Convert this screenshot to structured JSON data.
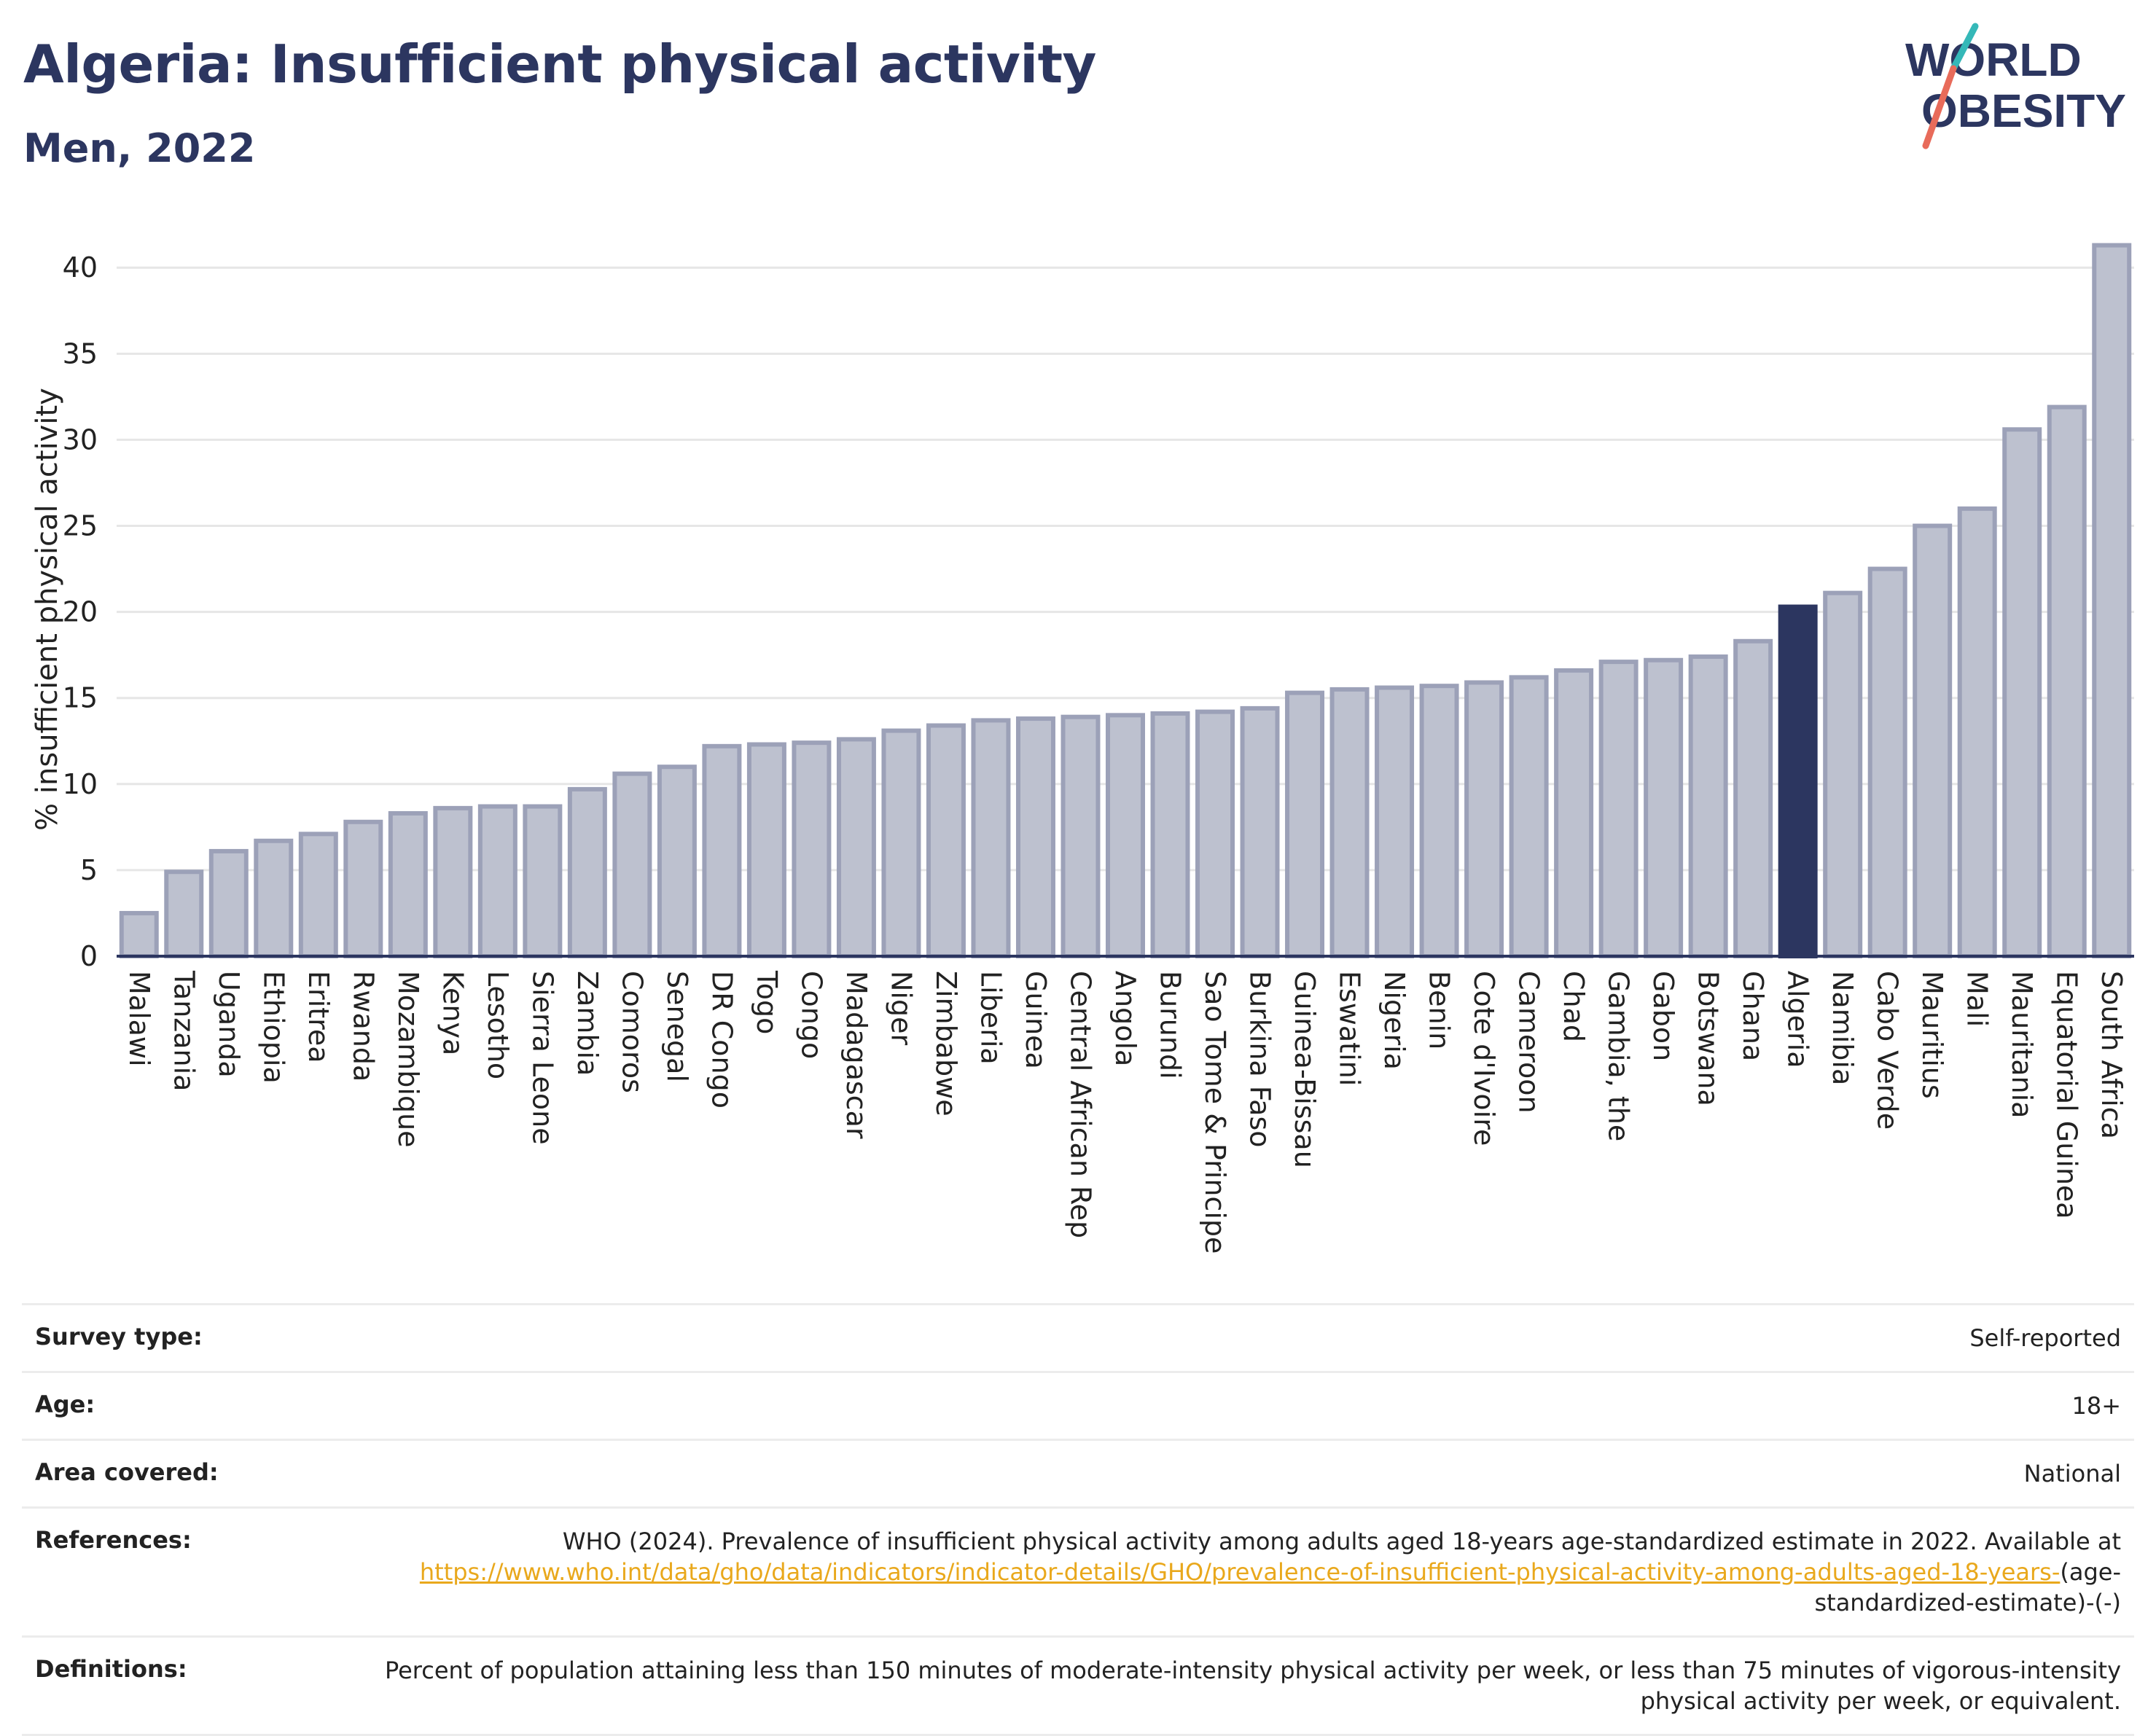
{
  "header": {
    "title": "Algeria: Insufficient physical activity",
    "subtitle": "Men, 2022"
  },
  "logo": {
    "line1": "WORLD",
    "line2": "OBESITY"
  },
  "colors": {
    "highlight_bar": "#2c3660",
    "other_bars_fill": "#bdc1cf",
    "other_bars_stroke": "#9ca1b8",
    "text": "#2c3660",
    "link": "#e9a81c",
    "logo_teal": "#35b8b8",
    "logo_coral": "#e86b5a"
  },
  "chart_data": {
    "type": "bar",
    "title": "",
    "ylabel": "% insufficient physical activity",
    "ylim": [
      0,
      42
    ],
    "yticks": [
      0,
      5,
      10,
      15,
      20,
      25,
      30,
      35,
      40
    ],
    "grid": true,
    "highlight": "Algeria",
    "categories": [
      "Malawi",
      "Tanzania",
      "Uganda",
      "Ethiopia",
      "Eritrea",
      "Rwanda",
      "Mozambique",
      "Kenya",
      "Lesotho",
      "Sierra Leone",
      "Zambia",
      "Comoros",
      "Senegal",
      "DR Congo",
      "Togo",
      "Congo",
      "Madagascar",
      "Niger",
      "Zimbabwe",
      "Liberia",
      "Guinea",
      "Central African Rep",
      "Angola",
      "Burundi",
      "Sao Tome & Principe",
      "Burkina Faso",
      "Guinea-Bissau",
      "Eswatini",
      "Nigeria",
      "Benin",
      "Cote d'Ivoire",
      "Cameroon",
      "Chad",
      "Gambia, the",
      "Gabon",
      "Botswana",
      "Ghana",
      "Algeria",
      "Namibia",
      "Cabo Verde",
      "Mauritius",
      "Mali",
      "Mauritania",
      "Equatorial Guinea",
      "South Africa"
    ],
    "values": [
      2.5,
      4.9,
      6.1,
      6.7,
      7.1,
      7.8,
      8.3,
      8.6,
      8.7,
      8.7,
      9.7,
      10.6,
      11.0,
      12.2,
      12.3,
      12.4,
      12.6,
      13.1,
      13.4,
      13.7,
      13.8,
      13.9,
      14.0,
      14.1,
      14.2,
      14.4,
      15.3,
      15.5,
      15.6,
      15.7,
      15.9,
      16.2,
      16.6,
      17.1,
      17.2,
      17.4,
      18.3,
      20.3,
      21.1,
      22.5,
      25.0,
      26.0,
      30.6,
      31.9,
      41.3
    ]
  },
  "metadata": [
    {
      "label": "Survey type:",
      "value": "Self-reported"
    },
    {
      "label": "Age:",
      "value": "18+"
    },
    {
      "label": "Area covered:",
      "value": "National"
    }
  ],
  "references": {
    "label": "References:",
    "text": "WHO (2024). Prevalence of insufficient physical activity among adults aged 18-years age-standardized estimate in 2022. Available at",
    "link": "https://www.who.int/data/gho/data/indicators/indicator-details/GHO/prevalence-of-insufficient-physical-activity-among-adults-aged-18-years-",
    "suffix": "(age-standardized-estimate)-(-)"
  },
  "definitions": {
    "label": "Definitions:",
    "text": "Percent of population attaining less than 150 minutes of moderate-intensity physical activity per week, or less than 75 minutes of vigorous-intensity physical activity per week, or equivalent."
  }
}
